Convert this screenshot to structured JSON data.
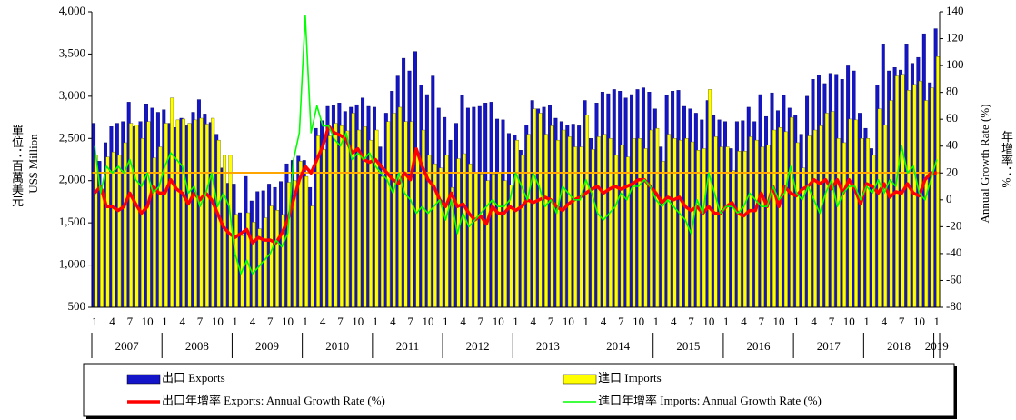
{
  "chart_data": {
    "type": "bar",
    "y_label": "US$ Million",
    "y_label_cjk": "單位：百萬美元",
    "y2_label": "Annual Growth Rate (%)",
    "y2_label_cjk": "年增率：%",
    "ylim": [
      500,
      4000
    ],
    "yticks": [
      500,
      {
        "value": 1000,
        "label": "1,000"
      },
      {
        "value": 1500,
        "label": "1,500"
      },
      {
        "value": 2000,
        "label": "2,000"
      },
      {
        "value": 2500,
        "label": "2,500"
      },
      {
        "value": 3000,
        "label": "3,000"
      },
      {
        "value": 3500,
        "label": "3,500"
      },
      {
        "value": 4000,
        "label": "4,000"
      }
    ],
    "y2lim": [
      -80,
      140
    ],
    "y2ticks": [
      -80,
      -60,
      -40,
      -20,
      0,
      20,
      40,
      60,
      80,
      100,
      120,
      140
    ],
    "years": [
      "2007",
      "2008",
      "2009",
      "2010",
      "2011",
      "2012",
      "2013",
      "2014",
      "2015",
      "2016",
      "2017",
      "2018",
      "2019"
    ],
    "categories": [
      "1",
      null,
      null,
      "4",
      null,
      null,
      "7",
      null,
      null,
      "10",
      null,
      null,
      "1",
      null,
      null,
      "4",
      null,
      null,
      "7",
      null,
      null,
      "10",
      null,
      null,
      "1",
      null,
      null,
      "4",
      null,
      null,
      "7",
      null,
      null,
      "10",
      null,
      null,
      "1",
      null,
      null,
      "4",
      null,
      null,
      "7",
      null,
      null,
      "10",
      null,
      null,
      "1",
      null,
      null,
      "4",
      null,
      null,
      "7",
      null,
      null,
      "10",
      null,
      null,
      "1",
      null,
      null,
      "4",
      null,
      null,
      "7",
      null,
      null,
      "10",
      null,
      null,
      "1",
      null,
      null,
      "4",
      null,
      null,
      "7",
      null,
      null,
      "10",
      null,
      null,
      "1",
      null,
      null,
      "4",
      null,
      null,
      "7",
      null,
      null,
      "10",
      null,
      null,
      "1",
      null,
      null,
      "4",
      null,
      null,
      "7",
      null,
      null,
      "10",
      null,
      null,
      "1",
      null,
      null,
      "4",
      null,
      null,
      "7",
      null,
      null,
      "10",
      null,
      null,
      "1",
      null,
      null,
      "4",
      null,
      null,
      "7",
      null,
      null,
      "10",
      null,
      null,
      "1",
      null,
      null,
      "4",
      null,
      null,
      "7",
      null,
      null,
      "10",
      null,
      null,
      "1"
    ],
    "series": [
      {
        "name": "出口 Exports",
        "type": "bar",
        "color": "#1414c8",
        "values": [
          2680,
          2230,
          2450,
          2640,
          2680,
          2700,
          2930,
          2640,
          2700,
          2910,
          2860,
          2810,
          2840,
          2680,
          2630,
          2740,
          2650,
          2810,
          2960,
          2790,
          2690,
          2550,
          2150,
          1970,
          1960,
          1620,
          2050,
          1760,
          1870,
          1880,
          1960,
          1920,
          1990,
          2200,
          2240,
          2290,
          2240,
          1920,
          2620,
          2710,
          2880,
          2890,
          2920,
          2820,
          2870,
          2900,
          2980,
          2880,
          2870,
          2400,
          2800,
          3060,
          3240,
          3450,
          3300,
          3530,
          3130,
          3020,
          3240,
          2860,
          2750,
          2480,
          2680,
          3010,
          2860,
          2870,
          2880,
          2920,
          2930,
          2730,
          2720,
          2560,
          2540,
          2360,
          2660,
          2950,
          2850,
          2870,
          2890,
          2740,
          2700,
          2660,
          2670,
          2650,
          2950,
          2500,
          2920,
          3050,
          3030,
          3080,
          3060,
          2980,
          3020,
          3080,
          3100,
          3050,
          2850,
          2400,
          3010,
          3060,
          3070,
          2880,
          2850,
          2800,
          2720,
          2950,
          2770,
          2720,
          2700,
          2380,
          2700,
          2710,
          2870,
          2700,
          3020,
          2760,
          3040,
          2830,
          3010,
          2860,
          2780,
          2550,
          3000,
          3200,
          3250,
          3150,
          3270,
          3260,
          3200,
          3360,
          3300,
          2800,
          2620,
          2380,
          3130,
          3620,
          3300,
          3340,
          3310,
          3620,
          3390,
          3460,
          3740,
          3160,
          3800
        ]
      },
      {
        "name": "進口 Imports",
        "type": "bar",
        "color": "#ffff00",
        "values": [
          2300,
          1900,
          2280,
          2340,
          2300,
          2450,
          2680,
          2660,
          2500,
          2700,
          2270,
          2400,
          2680,
          2980,
          2720,
          2730,
          2680,
          2720,
          2740,
          2670,
          2740,
          2480,
          2300,
          2300,
          1600,
          1350,
          1620,
          1510,
          1430,
          1560,
          1700,
          1650,
          1600,
          1980,
          2000,
          2230,
          2050,
          1700,
          2530,
          2370,
          2530,
          2680,
          2650,
          2590,
          2800,
          2600,
          2640,
          2480,
          2600,
          2050,
          2700,
          2800,
          2870,
          2700,
          2700,
          2300,
          2600,
          2300,
          2200,
          2150,
          2300,
          1920,
          2260,
          2320,
          2200,
          2100,
          2080,
          2000,
          2080,
          2100,
          2000,
          1950,
          2480,
          2300,
          2550,
          2850,
          2800,
          2550,
          2650,
          2480,
          2600,
          2520,
          2400,
          2400,
          2780,
          2370,
          2520,
          2550,
          2500,
          2300,
          2420,
          2280,
          2500,
          2500,
          2380,
          2600,
          2620,
          2230,
          2550,
          2500,
          2480,
          2500,
          2460,
          2360,
          2380,
          3080,
          2520,
          2400,
          2400,
          2120,
          2350,
          2350,
          2520,
          2480,
          2400,
          2420,
          2600,
          2630,
          2580,
          2750,
          2450,
          2150,
          2530,
          2600,
          2650,
          2800,
          2820,
          2500,
          2450,
          2730,
          2720,
          2500,
          2500,
          2300,
          2850,
          2660,
          2950,
          3240,
          3260,
          3070,
          3140,
          3180,
          2950,
          3100,
          3470
        ]
      },
      {
        "name": "出口年增率 Exports: Annual Growth Rate (%)",
        "type": "line",
        "axis": "y2",
        "color": "#ff0000",
        "values": [
          5,
          10,
          -5,
          -5,
          -8,
          -5,
          5,
          -3,
          -10,
          -5,
          10,
          5,
          5,
          15,
          8,
          5,
          -3,
          5,
          0,
          5,
          0,
          -10,
          -20,
          -25,
          -28,
          -25,
          -22,
          -32,
          -28,
          -30,
          -30,
          -32,
          -25,
          -15,
          0,
          15,
          25,
          20,
          30,
          40,
          55,
          50,
          48,
          45,
          35,
          38,
          30,
          28,
          30,
          25,
          20,
          15,
          12,
          20,
          15,
          38,
          25,
          15,
          10,
          0,
          -5,
          5,
          -5,
          -3,
          -10,
          -15,
          -12,
          -18,
          -5,
          -10,
          -10,
          -5,
          -8,
          -5,
          0,
          -2,
          0,
          2,
          0,
          -5,
          -8,
          -3,
          0,
          2,
          5,
          8,
          10,
          5,
          8,
          10,
          8,
          10,
          12,
          15,
          15,
          10,
          5,
          -2,
          2,
          0,
          2,
          -5,
          -8,
          -5,
          -10,
          -5,
          -10,
          -10,
          -5,
          -2,
          -10,
          -12,
          -8,
          -8,
          5,
          -5,
          10,
          -5,
          10,
          5,
          3,
          8,
          10,
          15,
          12,
          15,
          8,
          15,
          5,
          15,
          8,
          -3,
          12,
          10,
          5,
          12,
          2,
          6,
          5,
          12,
          5,
          3,
          15,
          20,
          20
        ]
      },
      {
        "name": "進口年增率 Imports: Annual Growth Rate (%)",
        "type": "line",
        "axis": "y2",
        "color": "#00ff00",
        "values": [
          40,
          5,
          25,
          20,
          25,
          20,
          30,
          15,
          10,
          20,
          5,
          10,
          25,
          35,
          30,
          25,
          5,
          10,
          -5,
          5,
          20,
          -5,
          5,
          -5,
          -40,
          -55,
          -45,
          -55,
          -50,
          -45,
          -40,
          -30,
          -35,
          -25,
          30,
          50,
          137,
          50,
          70,
          55,
          55,
          45,
          40,
          50,
          30,
          35,
          30,
          35,
          25,
          20,
          15,
          5,
          20,
          5,
          0,
          -10,
          -5,
          -10,
          -5,
          0,
          -15,
          0,
          -25,
          -10,
          -20,
          -15,
          -10,
          -5,
          0,
          -5,
          -5,
          0,
          20,
          10,
          0,
          20,
          10,
          -5,
          0,
          -10,
          10,
          5,
          0,
          0,
          15,
          5,
          -10,
          -15,
          -10,
          -5,
          5,
          0,
          10,
          10,
          15,
          10,
          0,
          -5,
          0,
          -5,
          -10,
          -15,
          -25,
          0,
          -10,
          20,
          5,
          -10,
          -5,
          -5,
          -10,
          -5,
          5,
          0,
          -5,
          -5,
          10,
          0,
          5,
          25,
          5,
          0,
          10,
          0,
          -10,
          5,
          15,
          -5,
          5,
          10,
          10,
          0,
          10,
          5,
          15,
          5,
          15,
          10,
          40,
          20,
          25,
          5,
          0,
          15,
          30
        ]
      }
    ]
  }
}
